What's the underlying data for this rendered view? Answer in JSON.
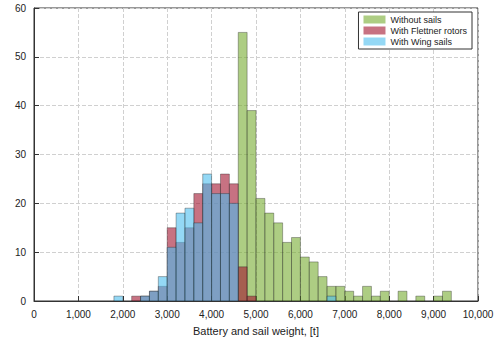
{
  "chart_data": {
    "type": "histogram",
    "xlabel": "Battery and sail weight, [t]",
    "bins": [
      1800,
      2000,
      2200,
      2400,
      2600,
      2800,
      3000,
      3200,
      3400,
      3600,
      3800,
      4000,
      4200,
      4400,
      4600,
      4800,
      5000,
      5200,
      5400,
      5600,
      5800,
      6000,
      6200,
      6400,
      6600,
      6800,
      7000,
      7200,
      7400,
      7600,
      7800,
      8000,
      8200,
      8400,
      8600,
      8800,
      9000,
      9200,
      9400
    ],
    "series": [
      {
        "name": "Without sails",
        "color": "#77ac30",
        "values": [
          0,
          0,
          0,
          0,
          0,
          0,
          0,
          0,
          0,
          0,
          0,
          0,
          0,
          0,
          55,
          39,
          21,
          18,
          16,
          12,
          13,
          9,
          8,
          5,
          3,
          3,
          2,
          1,
          3,
          1,
          2,
          0,
          2,
          0,
          1,
          0,
          1,
          2
        ]
      },
      {
        "name": "With Flettner rotors",
        "color": "#a2142f",
        "values": [
          0,
          0,
          1,
          1,
          2,
          3,
          15,
          12,
          15,
          22,
          24,
          24,
          26,
          24,
          7,
          1,
          0,
          0,
          0,
          0,
          0,
          0,
          0,
          0,
          0,
          0,
          0,
          0,
          0,
          0,
          0,
          0,
          0,
          0,
          0,
          0,
          0,
          0
        ]
      },
      {
        "name": "With Wing sails",
        "color": "#4dbeee",
        "values": [
          1,
          0,
          0,
          1,
          2,
          5,
          11,
          18,
          19,
          16,
          26,
          22,
          22,
          20,
          0,
          0,
          0,
          0,
          0,
          0,
          0,
          0,
          0,
          0,
          1,
          0,
          0,
          0,
          0,
          0,
          0,
          0,
          0,
          0,
          0,
          0,
          0,
          0
        ]
      }
    ],
    "xlim": [
      0,
      10000
    ],
    "xticks": [
      0,
      1000,
      2000,
      3000,
      4000,
      5000,
      6000,
      7000,
      8000,
      9000,
      10000
    ],
    "ylim": [
      0,
      60
    ],
    "yticks": [
      0,
      10,
      20,
      30,
      40,
      50,
      60
    ],
    "grid": true,
    "legend": "upper right"
  }
}
